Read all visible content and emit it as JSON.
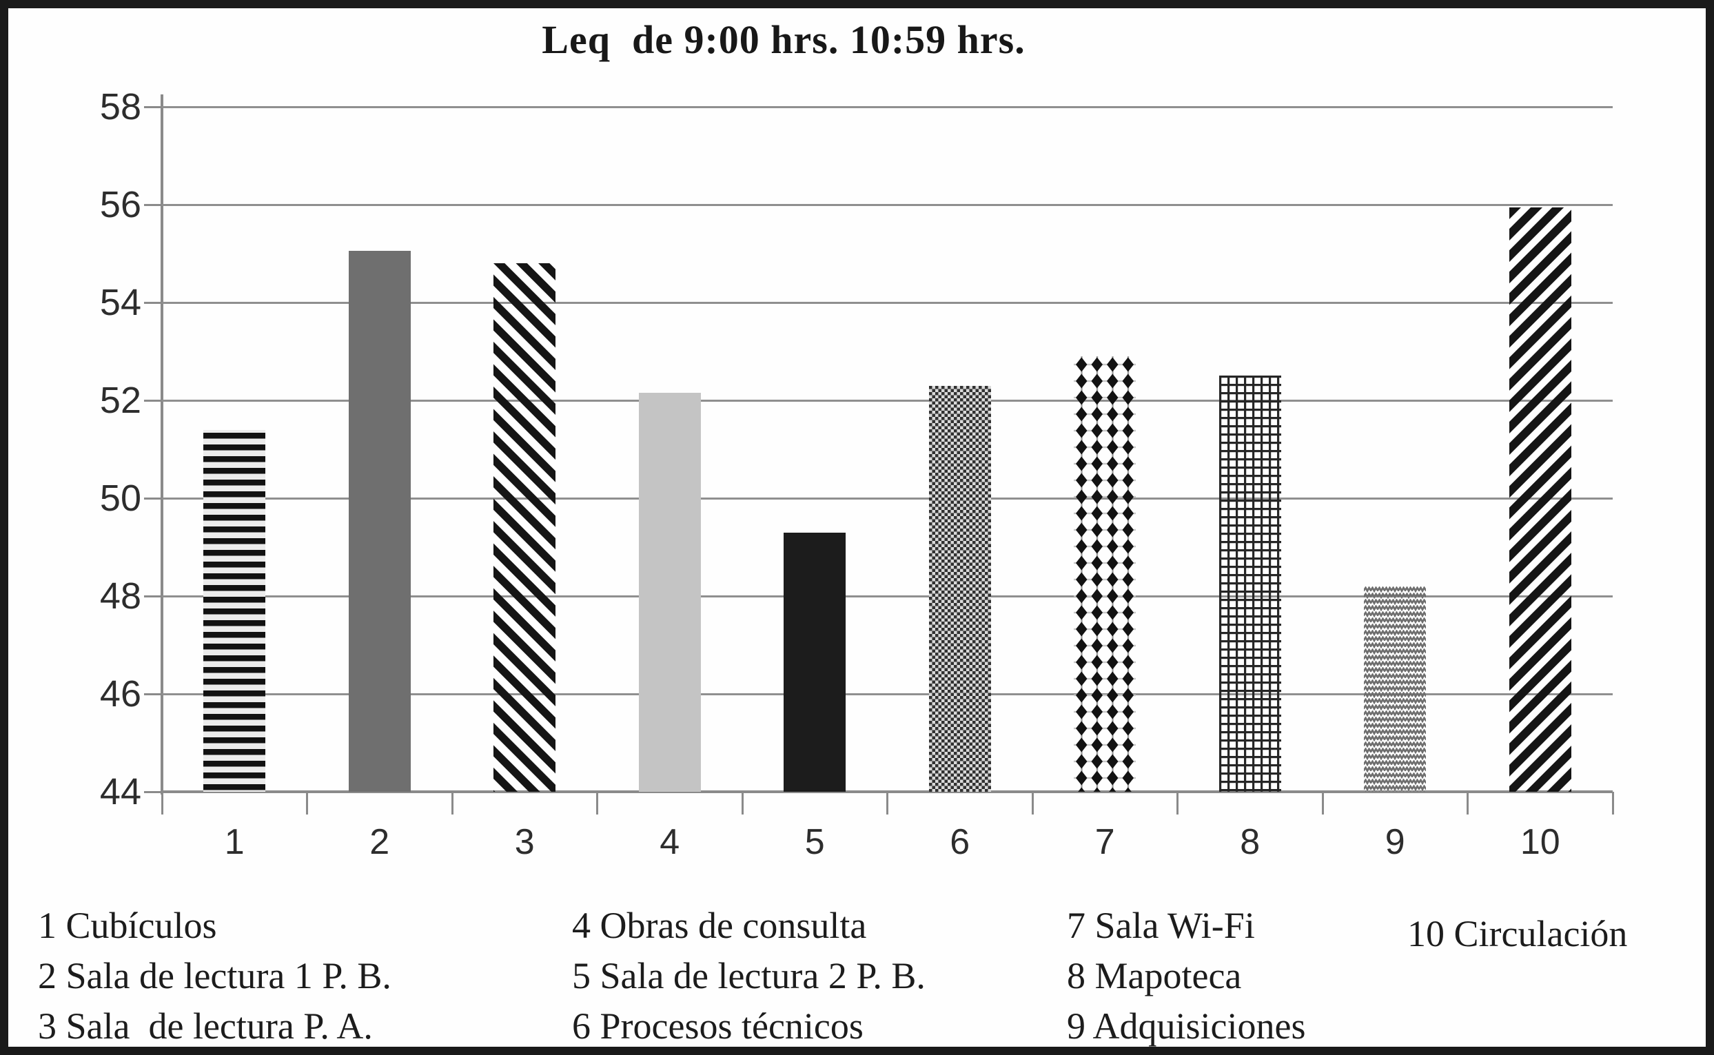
{
  "chart_data": {
    "type": "bar",
    "title": "Leq  de 9:00 hrs. 10:59 hrs.",
    "categories": [
      "1",
      "2",
      "3",
      "4",
      "5",
      "6",
      "7",
      "8",
      "9",
      "10"
    ],
    "values": [
      51.4,
      55.05,
      54.8,
      52.15,
      49.3,
      52.3,
      52.9,
      52.5,
      48.2,
      55.95
    ],
    "patterns": [
      "horizontal-stripes",
      "solid-dark-gray",
      "diagonal-stripes-down",
      "solid-light-gray",
      "solid-black",
      "checkerboard",
      "diamond-dots",
      "grid-crosshatch",
      "herringbone-zigzag",
      "diagonal-stripes-up"
    ],
    "xlabel": "",
    "ylabel": "",
    "ylim": [
      44,
      58
    ],
    "yticks": [
      58,
      56,
      54,
      52,
      50,
      48,
      46,
      44
    ],
    "grid": true,
    "legend_position": "bottom"
  },
  "legend": {
    "columns": [
      {
        "items": [
          "1 Cubículos",
          "2 Sala de lectura 1 P. B.",
          "3 Sala  de lectura P. A."
        ]
      },
      {
        "items": [
          "4 Obras de consulta",
          "5 Sala de lectura 2 P. B.",
          "6 Procesos técnicos"
        ]
      },
      {
        "items": [
          "7 Sala Wi-Fi",
          "8 Mapoteca",
          "9 Adquisiciones"
        ]
      },
      {
        "items": [
          "10 Circulación"
        ]
      }
    ]
  },
  "colors": {
    "bar_dark_gray": "#6f6f6f",
    "bar_light_gray": "#c4c4c4",
    "bar_black": "#1c1c1c",
    "pattern_ink": "#141414",
    "herringbone_gray": "#6e6e6e",
    "gridline": "#8f8f8f",
    "axis": "#8a8a8a",
    "text": "#1c1c1c",
    "frame_border": "#1a1a1a",
    "background": "#fefefe"
  }
}
